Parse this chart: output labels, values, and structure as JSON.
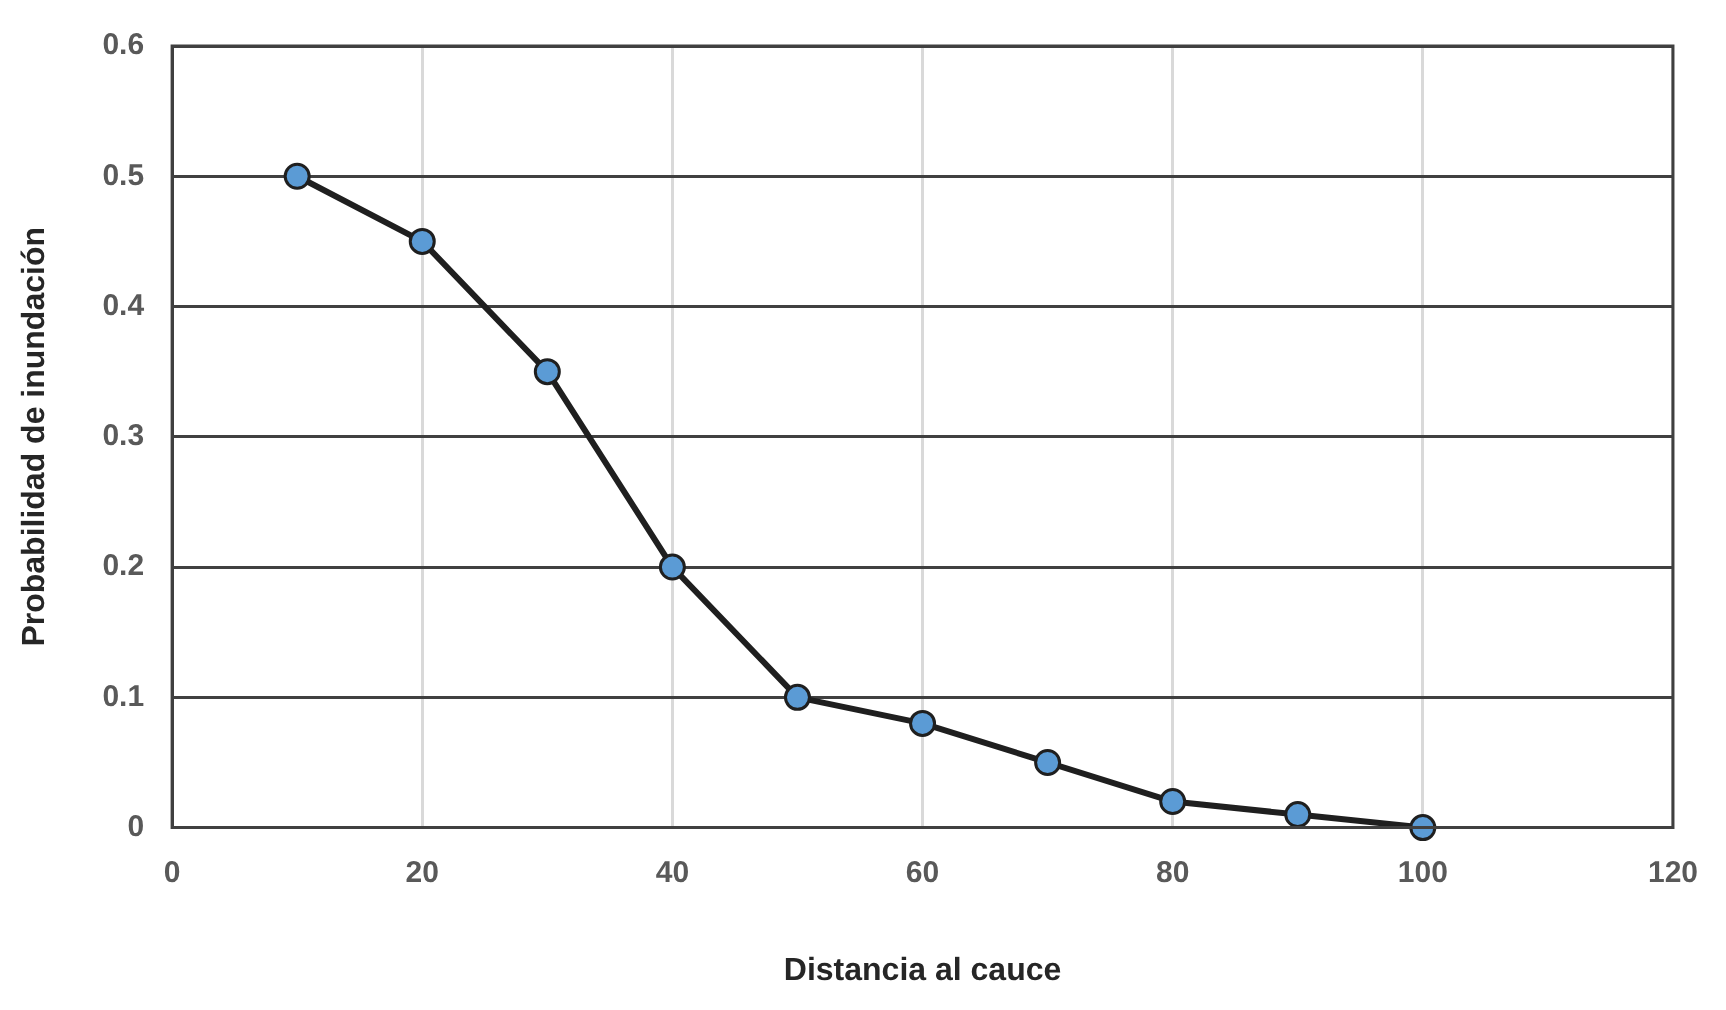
{
  "chart_data": {
    "type": "line",
    "xlabel": "Distancia al cauce",
    "ylabel": "Probabilidad de inundación",
    "x": [
      10,
      20,
      30,
      40,
      50,
      60,
      70,
      80,
      90,
      100
    ],
    "series": [
      {
        "color": "#1f1f1f",
        "values": [
          0.5,
          0.45,
          0.35,
          0.2,
          0.1,
          0.08,
          0.05,
          0.02,
          0.01,
          0
        ]
      }
    ],
    "xlim": [
      0,
      120
    ],
    "xticks": [
      0,
      20,
      40,
      60,
      80,
      100,
      120
    ],
    "ylim": [
      0,
      0.6
    ],
    "yticks": [
      0,
      0.1,
      0.2,
      0.3,
      0.4,
      0.5,
      0.6
    ],
    "grid": true,
    "legend": false,
    "marker": "circle",
    "line_style": "solid"
  }
}
